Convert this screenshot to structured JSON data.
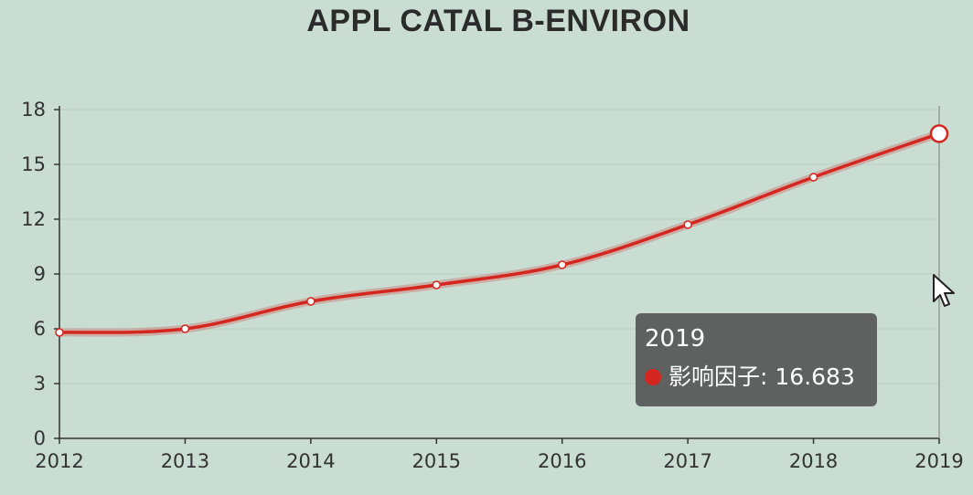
{
  "colors": {
    "background": "#c9ddd3",
    "line": "#d4261e",
    "marker_fill": "#ffffff",
    "axis": "#333333",
    "grid": "#bcd0c6",
    "tooltip_bg": "#5a5a5a"
  },
  "chart_data": {
    "type": "line",
    "title": "APPL CATAL B-ENVIRON",
    "xlabel": "",
    "ylabel": "",
    "categories": [
      "2012",
      "2013",
      "2014",
      "2015",
      "2016",
      "2017",
      "2018",
      "2019"
    ],
    "series": [
      {
        "name": "影响因子",
        "values": [
          5.8,
          6.0,
          7.5,
          8.4,
          9.5,
          11.7,
          14.3,
          16.683
        ]
      }
    ],
    "ylim": [
      0,
      18
    ],
    "yticks": [
      0,
      3,
      6,
      9,
      12,
      15,
      18
    ],
    "grid": true,
    "smooth": true,
    "highlighted_category": "2019"
  },
  "tooltip": {
    "title": "2019",
    "series_name": "影响因子",
    "value": "16.683",
    "icon": "red-circle-icon"
  },
  "cursor": {
    "icon": "mouse-pointer-icon"
  }
}
